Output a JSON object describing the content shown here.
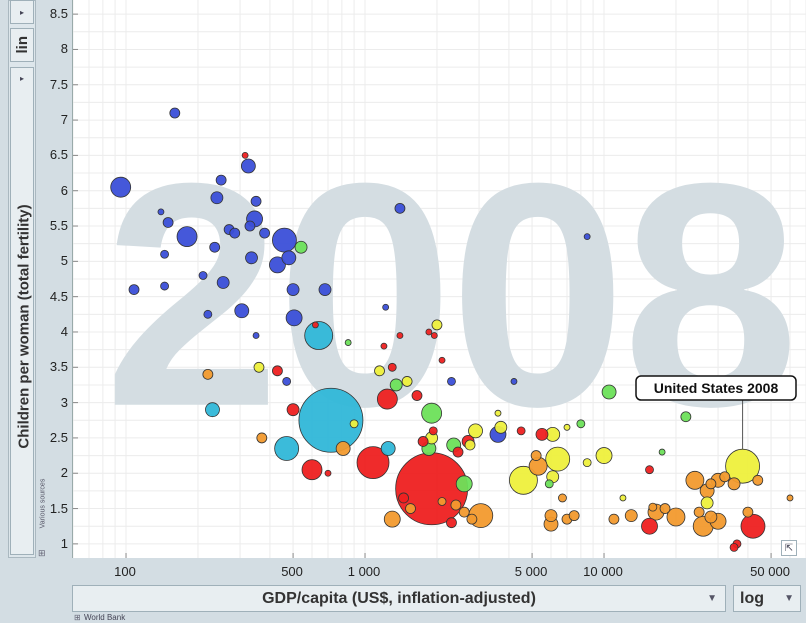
{
  "y_scale_button": "lin",
  "x_scale_button": "log",
  "y_source_note": "Various sources",
  "x_source_note": "World Bank",
  "year_watermark": "2008",
  "chart_data": {
    "type": "scatter",
    "xlabel": "GDP/capita (US$, inflation-adjusted)",
    "ylabel": "Children per woman (total fertility)",
    "x_scale": "log",
    "xlim": [
      60,
      70000
    ],
    "ylim": [
      0.8,
      8.7
    ],
    "x_ticks": [
      100,
      500,
      1000,
      5000,
      10000,
      50000
    ],
    "x_tick_labels": [
      "100",
      "500",
      "1 000",
      "5 000",
      "10 000",
      "50 000"
    ],
    "y_ticks": [
      1,
      1.5,
      2,
      2.5,
      3,
      3.5,
      4,
      4.5,
      5,
      5.5,
      6,
      6.5,
      7,
      7.5,
      8,
      8.5
    ],
    "y_tick_labels": [
      "1",
      "1.5",
      "2",
      "2.5",
      "3",
      "3.5",
      "4",
      "4.5",
      "5",
      "5.5",
      "6",
      "6.5",
      "7",
      "7.5",
      "8",
      "8.5"
    ],
    "annotation": {
      "text": "United States 2008",
      "x": 38000,
      "y": 2.1
    },
    "colors": {
      "blue": "#3b4fd8",
      "cyan": "#30b7d8",
      "green": "#6de05a",
      "yellow": "#eef03c",
      "orange": "#f29a2e",
      "red": "#ee2020"
    },
    "points": [
      {
        "x": 95,
        "y": 6.05,
        "s": 10,
        "c": "blue"
      },
      {
        "x": 160,
        "y": 7.1,
        "s": 5,
        "c": "blue"
      },
      {
        "x": 108,
        "y": 4.6,
        "s": 5,
        "c": "blue"
      },
      {
        "x": 140,
        "y": 5.7,
        "s": 3,
        "c": "blue"
      },
      {
        "x": 150,
        "y": 5.55,
        "s": 5,
        "c": "blue"
      },
      {
        "x": 145,
        "y": 5.1,
        "s": 4,
        "c": "blue"
      },
      {
        "x": 145,
        "y": 4.65,
        "s": 4,
        "c": "blue"
      },
      {
        "x": 180,
        "y": 5.35,
        "s": 10,
        "c": "blue"
      },
      {
        "x": 210,
        "y": 4.8,
        "s": 4,
        "c": "blue"
      },
      {
        "x": 220,
        "y": 4.25,
        "s": 4,
        "c": "blue"
      },
      {
        "x": 235,
        "y": 5.2,
        "s": 5,
        "c": "blue"
      },
      {
        "x": 240,
        "y": 5.9,
        "s": 6,
        "c": "blue"
      },
      {
        "x": 250,
        "y": 6.15,
        "s": 5,
        "c": "blue"
      },
      {
        "x": 255,
        "y": 4.7,
        "s": 6,
        "c": "blue"
      },
      {
        "x": 270,
        "y": 5.45,
        "s": 5,
        "c": "blue"
      },
      {
        "x": 285,
        "y": 5.4,
        "s": 5,
        "c": "blue"
      },
      {
        "x": 305,
        "y": 4.3,
        "s": 7,
        "c": "blue"
      },
      {
        "x": 325,
        "y": 6.35,
        "s": 7,
        "c": "blue"
      },
      {
        "x": 315,
        "y": 6.5,
        "s": 3,
        "c": "red"
      },
      {
        "x": 330,
        "y": 5.5,
        "s": 5,
        "c": "blue"
      },
      {
        "x": 335,
        "y": 5.05,
        "s": 6,
        "c": "blue"
      },
      {
        "x": 345,
        "y": 5.6,
        "s": 8,
        "c": "blue"
      },
      {
        "x": 350,
        "y": 5.85,
        "s": 5,
        "c": "blue"
      },
      {
        "x": 380,
        "y": 5.4,
        "s": 5,
        "c": "blue"
      },
      {
        "x": 430,
        "y": 4.95,
        "s": 8,
        "c": "blue"
      },
      {
        "x": 460,
        "y": 5.3,
        "s": 12,
        "c": "blue"
      },
      {
        "x": 500,
        "y": 4.6,
        "s": 6,
        "c": "blue"
      },
      {
        "x": 505,
        "y": 4.2,
        "s": 8,
        "c": "blue"
      },
      {
        "x": 480,
        "y": 5.05,
        "s": 7,
        "c": "blue"
      },
      {
        "x": 540,
        "y": 5.2,
        "s": 6,
        "c": "green"
      },
      {
        "x": 680,
        "y": 4.6,
        "s": 6,
        "c": "blue"
      },
      {
        "x": 640,
        "y": 3.95,
        "s": 14,
        "c": "cyan"
      },
      {
        "x": 350,
        "y": 3.95,
        "s": 3,
        "c": "blue"
      },
      {
        "x": 620,
        "y": 4.1,
        "s": 3,
        "c": "red"
      },
      {
        "x": 220,
        "y": 3.4,
        "s": 5,
        "c": "orange"
      },
      {
        "x": 230,
        "y": 2.9,
        "s": 7,
        "c": "cyan"
      },
      {
        "x": 360,
        "y": 3.5,
        "s": 5,
        "c": "yellow"
      },
      {
        "x": 430,
        "y": 3.45,
        "s": 5,
        "c": "red"
      },
      {
        "x": 470,
        "y": 3.3,
        "s": 4,
        "c": "blue"
      },
      {
        "x": 500,
        "y": 2.9,
        "s": 6,
        "c": "red"
      },
      {
        "x": 470,
        "y": 2.35,
        "s": 12,
        "c": "cyan"
      },
      {
        "x": 370,
        "y": 2.5,
        "s": 5,
        "c": "orange"
      },
      {
        "x": 720,
        "y": 2.75,
        "s": 32,
        "c": "cyan"
      },
      {
        "x": 600,
        "y": 2.05,
        "s": 10,
        "c": "red"
      },
      {
        "x": 700,
        "y": 2.0,
        "s": 3,
        "c": "red"
      },
      {
        "x": 810,
        "y": 2.35,
        "s": 7,
        "c": "orange"
      },
      {
        "x": 900,
        "y": 2.7,
        "s": 4,
        "c": "yellow"
      },
      {
        "x": 850,
        "y": 3.85,
        "s": 3,
        "c": "green"
      },
      {
        "x": 1080,
        "y": 2.15,
        "s": 16,
        "c": "red"
      },
      {
        "x": 1240,
        "y": 3.05,
        "s": 10,
        "c": "red"
      },
      {
        "x": 1150,
        "y": 3.45,
        "s": 5,
        "c": "yellow"
      },
      {
        "x": 1350,
        "y": 3.25,
        "s": 6,
        "c": "green"
      },
      {
        "x": 1300,
        "y": 3.5,
        "s": 4,
        "c": "red"
      },
      {
        "x": 1400,
        "y": 5.75,
        "s": 5,
        "c": "blue"
      },
      {
        "x": 1220,
        "y": 4.35,
        "s": 3,
        "c": "blue"
      },
      {
        "x": 1200,
        "y": 3.8,
        "s": 3,
        "c": "red"
      },
      {
        "x": 1400,
        "y": 3.95,
        "s": 3,
        "c": "red"
      },
      {
        "x": 1500,
        "y": 3.3,
        "s": 5,
        "c": "yellow"
      },
      {
        "x": 1650,
        "y": 3.1,
        "s": 5,
        "c": "red"
      },
      {
        "x": 1250,
        "y": 2.35,
        "s": 7,
        "c": "cyan"
      },
      {
        "x": 1900,
        "y": 2.85,
        "s": 10,
        "c": "green"
      },
      {
        "x": 1750,
        "y": 2.45,
        "s": 5,
        "c": "red"
      },
      {
        "x": 1850,
        "y": 2.35,
        "s": 7,
        "c": "green"
      },
      {
        "x": 1900,
        "y": 2.5,
        "s": 6,
        "c": "yellow"
      },
      {
        "x": 1930,
        "y": 2.6,
        "s": 4,
        "c": "red"
      },
      {
        "x": 1850,
        "y": 4.0,
        "s": 3,
        "c": "red"
      },
      {
        "x": 1950,
        "y": 3.95,
        "s": 3,
        "c": "red"
      },
      {
        "x": 2000,
        "y": 4.1,
        "s": 5,
        "c": "yellow"
      },
      {
        "x": 2100,
        "y": 3.6,
        "s": 3,
        "c": "red"
      },
      {
        "x": 2300,
        "y": 3.3,
        "s": 4,
        "c": "blue"
      },
      {
        "x": 1900,
        "y": 1.78,
        "s": 36,
        "c": "red"
      },
      {
        "x": 1550,
        "y": 1.5,
        "s": 5,
        "c": "orange"
      },
      {
        "x": 1450,
        "y": 1.65,
        "s": 5,
        "c": "red"
      },
      {
        "x": 1300,
        "y": 1.35,
        "s": 8,
        "c": "orange"
      },
      {
        "x": 2350,
        "y": 2.4,
        "s": 7,
        "c": "green"
      },
      {
        "x": 2450,
        "y": 2.3,
        "s": 5,
        "c": "red"
      },
      {
        "x": 2700,
        "y": 2.45,
        "s": 6,
        "c": "red"
      },
      {
        "x": 2900,
        "y": 2.6,
        "s": 7,
        "c": "yellow"
      },
      {
        "x": 2750,
        "y": 2.4,
        "s": 5,
        "c": "yellow"
      },
      {
        "x": 2600,
        "y": 1.85,
        "s": 8,
        "c": "green"
      },
      {
        "x": 2400,
        "y": 1.55,
        "s": 5,
        "c": "orange"
      },
      {
        "x": 2600,
        "y": 1.45,
        "s": 5,
        "c": "orange"
      },
      {
        "x": 2800,
        "y": 1.35,
        "s": 5,
        "c": "orange"
      },
      {
        "x": 3050,
        "y": 1.4,
        "s": 12,
        "c": "orange"
      },
      {
        "x": 2300,
        "y": 1.3,
        "s": 5,
        "c": "red"
      },
      {
        "x": 2100,
        "y": 1.6,
        "s": 4,
        "c": "orange"
      },
      {
        "x": 3600,
        "y": 2.85,
        "s": 3,
        "c": "yellow"
      },
      {
        "x": 3700,
        "y": 2.65,
        "s": 6,
        "c": "yellow"
      },
      {
        "x": 3600,
        "y": 2.55,
        "s": 8,
        "c": "blue"
      },
      {
        "x": 4200,
        "y": 3.3,
        "s": 3,
        "c": "blue"
      },
      {
        "x": 4500,
        "y": 2.6,
        "s": 4,
        "c": "red"
      },
      {
        "x": 4600,
        "y": 1.9,
        "s": 14,
        "c": "yellow"
      },
      {
        "x": 5200,
        "y": 2.25,
        "s": 5,
        "c": "orange"
      },
      {
        "x": 5300,
        "y": 2.1,
        "s": 9,
        "c": "orange"
      },
      {
        "x": 5500,
        "y": 2.55,
        "s": 6,
        "c": "red"
      },
      {
        "x": 6100,
        "y": 2.55,
        "s": 7,
        "c": "yellow"
      },
      {
        "x": 6400,
        "y": 2.2,
        "s": 12,
        "c": "yellow"
      },
      {
        "x": 6100,
        "y": 1.95,
        "s": 6,
        "c": "yellow"
      },
      {
        "x": 5900,
        "y": 1.85,
        "s": 4,
        "c": "green"
      },
      {
        "x": 6700,
        "y": 1.65,
        "s": 4,
        "c": "orange"
      },
      {
        "x": 6000,
        "y": 1.4,
        "s": 6,
        "c": "orange"
      },
      {
        "x": 6000,
        "y": 1.28,
        "s": 7,
        "c": "orange"
      },
      {
        "x": 7000,
        "y": 1.35,
        "s": 5,
        "c": "orange"
      },
      {
        "x": 7500,
        "y": 1.4,
        "s": 5,
        "c": "orange"
      },
      {
        "x": 7000,
        "y": 2.65,
        "s": 3,
        "c": "yellow"
      },
      {
        "x": 8000,
        "y": 2.7,
        "s": 4,
        "c": "green"
      },
      {
        "x": 8500,
        "y": 5.35,
        "s": 3,
        "c": "blue"
      },
      {
        "x": 8500,
        "y": 2.15,
        "s": 4,
        "c": "yellow"
      },
      {
        "x": 10500,
        "y": 3.15,
        "s": 7,
        "c": "green"
      },
      {
        "x": 10000,
        "y": 2.25,
        "s": 8,
        "c": "yellow"
      },
      {
        "x": 12000,
        "y": 1.65,
        "s": 3,
        "c": "yellow"
      },
      {
        "x": 13000,
        "y": 1.4,
        "s": 6,
        "c": "orange"
      },
      {
        "x": 11000,
        "y": 1.35,
        "s": 5,
        "c": "orange"
      },
      {
        "x": 15500,
        "y": 2.05,
        "s": 4,
        "c": "red"
      },
      {
        "x": 17500,
        "y": 2.3,
        "s": 3,
        "c": "green"
      },
      {
        "x": 16000,
        "y": 1.52,
        "s": 4,
        "c": "orange"
      },
      {
        "x": 16500,
        "y": 1.45,
        "s": 8,
        "c": "orange"
      },
      {
        "x": 18000,
        "y": 1.5,
        "s": 5,
        "c": "orange"
      },
      {
        "x": 15500,
        "y": 1.25,
        "s": 8,
        "c": "red"
      },
      {
        "x": 20000,
        "y": 1.38,
        "s": 9,
        "c": "orange"
      },
      {
        "x": 22000,
        "y": 2.8,
        "s": 5,
        "c": "green"
      },
      {
        "x": 24000,
        "y": 1.9,
        "s": 9,
        "c": "orange"
      },
      {
        "x": 27000,
        "y": 1.75,
        "s": 7,
        "c": "orange"
      },
      {
        "x": 28000,
        "y": 1.85,
        "s": 5,
        "c": "orange"
      },
      {
        "x": 30000,
        "y": 1.9,
        "s": 7,
        "c": "orange"
      },
      {
        "x": 32000,
        "y": 1.95,
        "s": 5,
        "c": "orange"
      },
      {
        "x": 35000,
        "y": 1.85,
        "s": 6,
        "c": "orange"
      },
      {
        "x": 27000,
        "y": 1.58,
        "s": 6,
        "c": "yellow"
      },
      {
        "x": 25000,
        "y": 1.45,
        "s": 5,
        "c": "orange"
      },
      {
        "x": 28000,
        "y": 1.38,
        "s": 6,
        "c": "orange"
      },
      {
        "x": 30000,
        "y": 1.32,
        "s": 8,
        "c": "orange"
      },
      {
        "x": 26000,
        "y": 1.25,
        "s": 10,
        "c": "orange"
      },
      {
        "x": 38000,
        "y": 2.1,
        "s": 17,
        "c": "yellow"
      },
      {
        "x": 40000,
        "y": 1.45,
        "s": 5,
        "c": "orange"
      },
      {
        "x": 44000,
        "y": 1.9,
        "s": 5,
        "c": "orange"
      },
      {
        "x": 42000,
        "y": 1.25,
        "s": 12,
        "c": "red"
      },
      {
        "x": 36000,
        "y": 1.0,
        "s": 4,
        "c": "red"
      },
      {
        "x": 35000,
        "y": 0.95,
        "s": 4,
        "c": "red"
      },
      {
        "x": 60000,
        "y": 1.65,
        "s": 3,
        "c": "orange"
      }
    ]
  }
}
